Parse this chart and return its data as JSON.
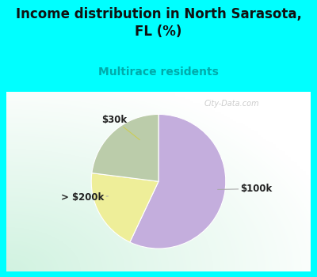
{
  "title": "Income distribution in North Sarasota,\nFL (%)",
  "subtitle": "Multirace residents",
  "title_fontsize": 12,
  "subtitle_fontsize": 10,
  "subtitle_color": "#00AAAA",
  "slices": [
    {
      "label": "$100k",
      "value": 57,
      "color": "#C4AEDD"
    },
    {
      "label": "$30k",
      "value": 20,
      "color": "#EEEE99"
    },
    {
      "label": "> $200k",
      "value": 23,
      "color": "#BBCCAA"
    }
  ],
  "bg_color": "#00FFFF",
  "watermark": "City-Data.com",
  "annotation_color": "#222222",
  "annotation_fontsize": 8.5,
  "line_color": "#AAAAAA"
}
